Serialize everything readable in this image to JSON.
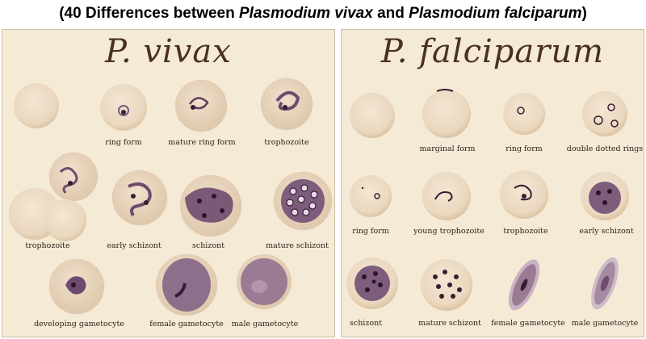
{
  "header": {
    "prefix": "(40 Differences between ",
    "species_a": "Plasmodium vivax",
    "middle": " and ",
    "species_b": "Plasmodium falciparum",
    "suffix": ")"
  },
  "vivax": {
    "title": "P.  vivax",
    "labels": {
      "ring_form": "ring form",
      "mature_ring_form": "mature ring form",
      "trophozoite_top": "trophozoite",
      "trophozoite_left": "trophozoite",
      "early_schizont": "early schizont",
      "schizont": "schizont",
      "mature_schizont": "mature schizont",
      "developing_gametocyte": "developing gametocyte",
      "female_gametocyte": "female gametocyte",
      "male_gametocyte": "male gametocyte"
    }
  },
  "falciparum": {
    "title": "P.  falciparum",
    "labels": {
      "marginal_form": "marginal form",
      "ring_form_top": "ring form",
      "double_dotted_rings": "double dotted rings",
      "ring_form_mid": "ring form",
      "young_trophozoite": "young trophozoite",
      "trophozoite": "trophozoite",
      "early_schizont": "early schizont",
      "schizont": "schizont",
      "mature_schizont": "mature schizont",
      "female_gametocyte": "female gametocyte",
      "male_gametocyte": "male gametocyte"
    }
  },
  "colors": {
    "background": "#f4ead6",
    "rbc": "#ecdcc6",
    "parasite": "#6e4a6e",
    "chromatin": "#3a1c34"
  }
}
